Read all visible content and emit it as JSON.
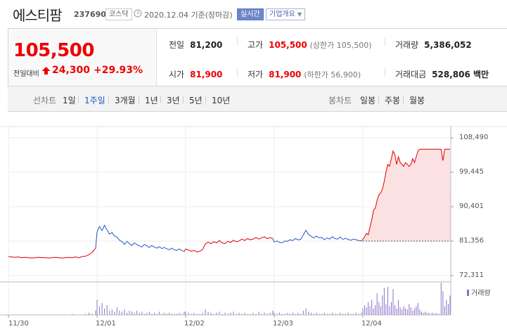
{
  "header": {
    "name": "에스티팜",
    "code": "237690",
    "market_badge": "코스닥",
    "date_text": "2020.12.04 기준(장마감)",
    "realtime_badge": "실시간",
    "corp_info_button": "기업개요"
  },
  "quote": {
    "price": "105,500",
    "vs_prev_label": "전일대비",
    "change": "24,300",
    "change_pct": "+29.93%",
    "prev_close_label": "전일",
    "prev_close": "81,200",
    "high_label": "고가",
    "high": "105,500",
    "upper_limit": "(상한가 105,500)",
    "volume_label": "거래량",
    "volume": "5,386,052",
    "open_label": "시가",
    "open": "81,900",
    "low_label": "저가",
    "low": "81,900",
    "lower_limit": "(하한가 56,900)",
    "amount_label": "거래대금",
    "amount": "528,806 백만"
  },
  "tabs": {
    "line_chart_label": "선차트",
    "periods": [
      "1일",
      "1주일",
      "3개월",
      "1년",
      "3년",
      "5년",
      "10년"
    ],
    "selected_period": "1주일",
    "candle_chart_label": "봉차트",
    "candles": [
      "일봉",
      "주봉",
      "월봉"
    ]
  },
  "colors": {
    "up": "#e00000",
    "down": "#2a55c8",
    "volume": "#8a6fcb",
    "fill": "#fbe1e1"
  },
  "chart_data": {
    "type": "line",
    "x_labels": [
      "11/30",
      "12/01",
      "12/02",
      "12/03",
      "12/04"
    ],
    "y_ticks": [
      "108,490",
      "99,445",
      "90,401",
      "81,356",
      "72,311"
    ],
    "ylim": [
      72311,
      108490
    ],
    "prev_close_ref": 81356,
    "volume_legend": "거래량",
    "series": [
      {
        "day": "11/30",
        "color": "#e00000",
        "values": [
          77300,
          77200,
          77100,
          77200,
          77000,
          77100,
          77000,
          76900,
          77000,
          77100,
          77000,
          77000,
          76900,
          77000,
          77100,
          77000,
          76900,
          77000,
          77100,
          77000,
          77200,
          77000,
          77300,
          77400,
          77800,
          78400,
          79500
        ]
      },
      {
        "day": "12/01",
        "color": "#2a55c8",
        "values": [
          83800,
          85200,
          84100,
          85500,
          84300,
          83200,
          83600,
          82700,
          82400,
          81600,
          81200,
          80500,
          81300,
          80700,
          80200,
          80900,
          80400,
          80100,
          79800,
          80500,
          80100,
          79700,
          80200,
          79800,
          79500,
          79900,
          79400,
          79700,
          79300,
          79100,
          79500,
          79100,
          78900,
          79300,
          78900,
          78600
        ]
      },
      {
        "day": "12/02",
        "color": "#e00000",
        "values": [
          79300,
          79000,
          78700,
          78900,
          78500,
          78700,
          79100,
          80600,
          81100,
          80700,
          81200,
          80900,
          81500,
          80900,
          80700,
          81300,
          81000,
          81600,
          81200,
          81400,
          81900,
          81500,
          82000,
          81700,
          81900,
          82300,
          81900,
          82200,
          82500,
          82000,
          82300,
          82000
        ]
      },
      {
        "day": "12/03",
        "color": "#2a55c8",
        "values": [
          81100,
          81400,
          81000,
          80900,
          81400,
          81300,
          81700,
          81500,
          82000,
          81700,
          81800,
          83000,
          84200,
          83100,
          82600,
          82200,
          82700,
          82200,
          82300,
          81700,
          82200,
          81900,
          82500,
          82000,
          81900,
          82400,
          81800,
          82100,
          81800,
          81600,
          81900,
          81700,
          81500,
          81400
        ]
      },
      {
        "day": "12/04",
        "color": "#e00000",
        "values": [
          81800,
          82500,
          83400,
          83000,
          85000,
          87000,
          89500,
          90000,
          92000,
          93500,
          94000,
          95000,
          97000,
          99500,
          101500,
          101000,
          103000,
          105000,
          104000,
          101500,
          103500,
          102000,
          101500,
          101000,
          102000,
          101500,
          101000,
          101500,
          103000,
          102000,
          103500,
          105000,
          105500,
          105500,
          105500,
          105500,
          105500,
          105500,
          105500,
          105500,
          105500,
          105500,
          105500,
          105500,
          105500,
          102500,
          105500,
          105500,
          105500,
          105500
        ]
      }
    ],
    "volume": [
      {
        "day": "11/30",
        "values": [
          0,
          0,
          0,
          0,
          0,
          0,
          0,
          0,
          0,
          0,
          0,
          0,
          0,
          0,
          0,
          0,
          0,
          0,
          0,
          1,
          0,
          0,
          0,
          1,
          2,
          1,
          4
        ]
      },
      {
        "day": "12/01",
        "values": [
          14,
          8,
          11,
          6,
          9,
          4,
          5,
          3,
          7,
          4,
          3,
          5,
          2,
          4,
          3,
          2,
          4,
          2,
          3,
          1,
          2,
          3,
          1,
          2,
          1,
          3,
          1,
          2,
          1,
          2,
          1,
          1,
          1,
          2,
          1,
          3
        ]
      },
      {
        "day": "12/02",
        "values": [
          3,
          2,
          1,
          2,
          1,
          1,
          2,
          5,
          3,
          2,
          1,
          2,
          3,
          1,
          2,
          1,
          2,
          3,
          1,
          2,
          1,
          2,
          1,
          1,
          2,
          1,
          3,
          1,
          2,
          1,
          2,
          4
        ]
      },
      {
        "day": "12/03",
        "values": [
          2,
          1,
          2,
          1,
          1,
          2,
          1,
          2,
          1,
          2,
          1,
          4,
          6,
          3,
          2,
          1,
          2,
          1,
          1,
          2,
          1,
          1,
          2,
          1,
          1,
          2,
          1,
          1,
          2,
          1,
          1,
          2,
          1,
          2
        ]
      },
      {
        "day": "12/04",
        "values": [
          6,
          9,
          7,
          12,
          8,
          14,
          6,
          9,
          20,
          12,
          8,
          18,
          25,
          10,
          26,
          8,
          12,
          24,
          9,
          6,
          14,
          7,
          5,
          8,
          6,
          5,
          10,
          7,
          4,
          6,
          8,
          11,
          5,
          3,
          2,
          3,
          2,
          2,
          1,
          2,
          1,
          2,
          1,
          1,
          30,
          22,
          8,
          14,
          10,
          18
        ]
      }
    ]
  }
}
